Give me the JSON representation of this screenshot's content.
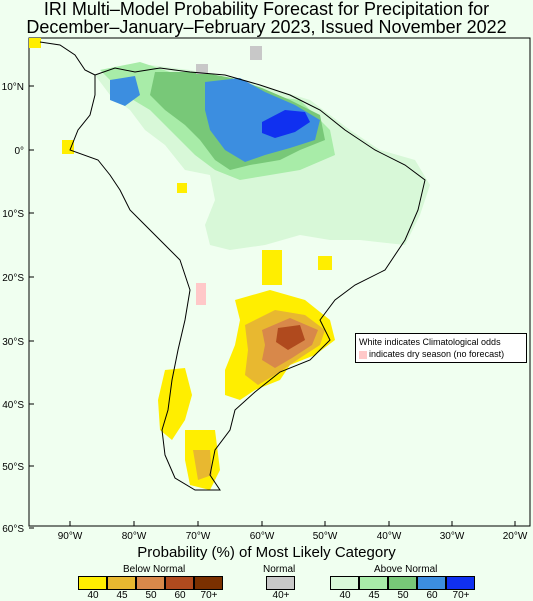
{
  "title_line1": "IRI Multi–Model Probability Forecast for Precipitation for",
  "title_line2": "December–January–February 2023, Issued November 2022",
  "lat_ticks": [
    "10°N",
    "0°",
    "10°S",
    "20°S",
    "30°S",
    "40°S",
    "50°S",
    "60°S"
  ],
  "lon_ticks": [
    "90°W",
    "80°W",
    "70°W",
    "60°W",
    "50°W",
    "40°W",
    "30°W",
    "20°W"
  ],
  "note_line1": "White indicates Climatological odds",
  "note_line2": "indicates dry season (no forecast)",
  "legend_title": "Probability (%) of Most Likely Category",
  "legend_below_label": "Below Normal",
  "legend_normal_label": "Normal",
  "legend_above_label": "Above Normal",
  "below_values": [
    "40",
    "45",
    "50",
    "60",
    "70+"
  ],
  "normal_values": [
    "40+"
  ],
  "above_values": [
    "40",
    "45",
    "50",
    "60",
    "70+"
  ],
  "colors": {
    "below": [
      "#ffee00",
      "#e8b830",
      "#d8884a",
      "#b04a1e",
      "#7a3000"
    ],
    "normal": [
      "#c8c8c8"
    ],
    "above": [
      "#d8f8d8",
      "#a8eca8",
      "#78c878",
      "#3c8ee0",
      "#1030f0"
    ],
    "dry": "#ffc8c8",
    "background": "#f0fff0"
  }
}
